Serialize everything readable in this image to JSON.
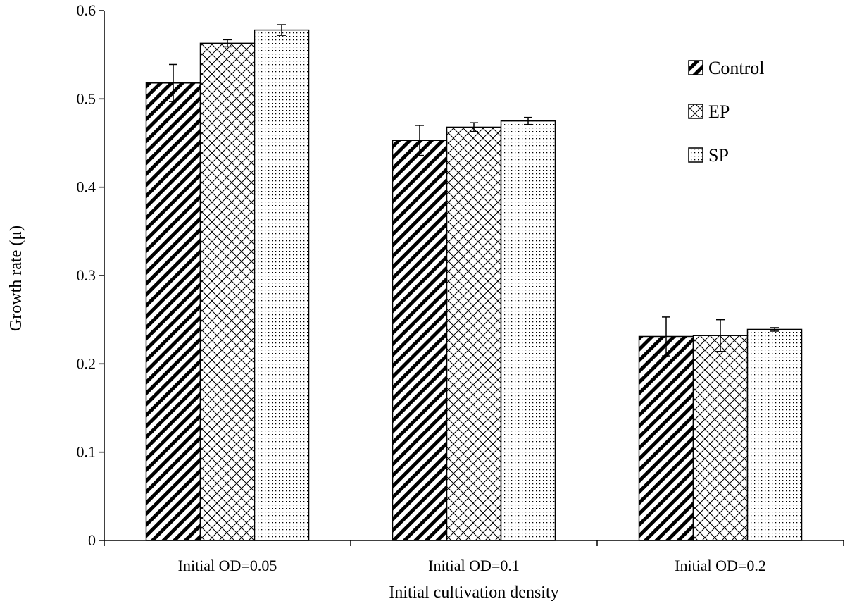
{
  "chart_data": {
    "type": "bar",
    "title": "",
    "xlabel": "Initial cultivation density",
    "ylabel": "Growth rate (μ)",
    "categories": [
      "Initial OD=0.05",
      "Initial OD=0.1",
      "Initial OD=0.2"
    ],
    "ylim": [
      0,
      0.6
    ],
    "yticks": [
      "0",
      "0.1",
      "0.2",
      "0.3",
      "0.4",
      "0.5",
      "0.6"
    ],
    "grid": false,
    "legend_position": "top-right",
    "series": [
      {
        "name": "Control",
        "pattern": "diagonal-hatch",
        "values": [
          0.518,
          0.453,
          0.231
        ],
        "errors": [
          0.021,
          0.017,
          0.022
        ]
      },
      {
        "name": "EP",
        "pattern": "cross-hatch",
        "values": [
          0.563,
          0.468,
          0.232
        ],
        "errors": [
          0.004,
          0.005,
          0.018
        ]
      },
      {
        "name": "SP",
        "pattern": "dots",
        "values": [
          0.578,
          0.475,
          0.239
        ],
        "errors": [
          0.006,
          0.004,
          0.002
        ]
      }
    ],
    "colors": {
      "axis": "#000000",
      "fill": "#ffffff",
      "pattern": "#000000"
    }
  }
}
